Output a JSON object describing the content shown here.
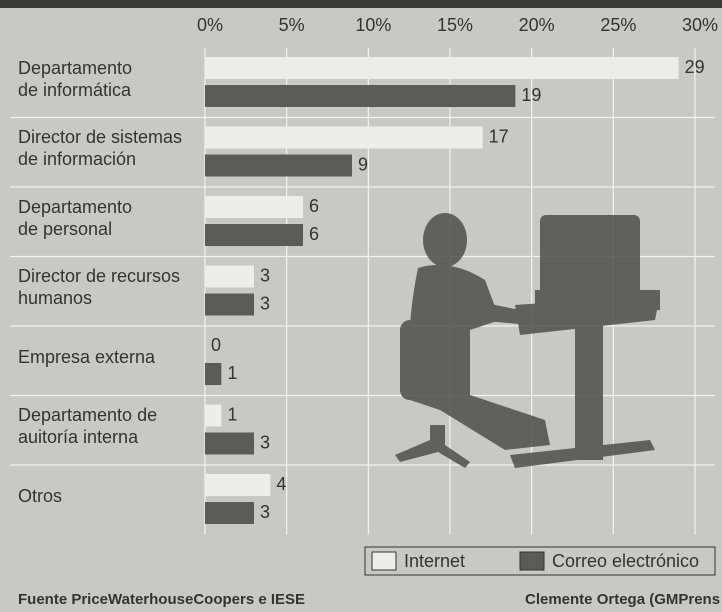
{
  "chart_data": {
    "type": "bar",
    "orientation": "horizontal",
    "categories": [
      "Departamento\nde informática",
      "Director de sistemas\nde información",
      "Departamento\nde personal",
      "Director de recursos\nhumanos",
      "Empresa externa",
      "Departamento de\nauitoría interna",
      "Otros"
    ],
    "series": [
      {
        "name": "Internet",
        "color": "#ededea",
        "values": [
          29,
          17,
          6,
          3,
          0,
          1,
          4
        ]
      },
      {
        "name": "Correo electrónico",
        "color": "#5b5b58",
        "values": [
          19,
          9,
          6,
          3,
          1,
          3,
          3
        ]
      }
    ],
    "xlim": [
      0,
      30
    ],
    "xticks": [
      {
        "value": 0,
        "label": "0%"
      },
      {
        "value": 5,
        "label": "5%"
      },
      {
        "value": 10,
        "label": "10%"
      },
      {
        "value": 15,
        "label": "15%"
      },
      {
        "value": 20,
        "label": "20%"
      },
      {
        "value": 25,
        "label": "25%"
      },
      {
        "value": 30,
        "label": "30%"
      }
    ],
    "grid": true,
    "legend": "bottom-right",
    "source": "Fuente PriceWaterhouseCoopers e IESE",
    "credit": "Clemente Ortega (GMPrens"
  }
}
